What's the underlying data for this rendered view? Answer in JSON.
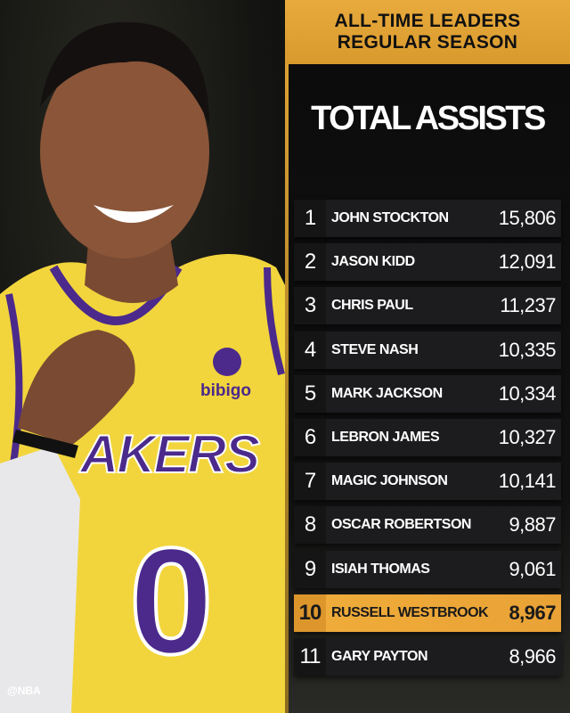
{
  "header": {
    "line1": "ALL-TIME LEADERS",
    "line2": "REGULAR SEASON"
  },
  "title": "TOTAL ASSISTS",
  "leaders": [
    {
      "rank": "1",
      "name": "JOHN STOCKTON",
      "value": "15,806"
    },
    {
      "rank": "2",
      "name": "JASON KIDD",
      "value": "12,091"
    },
    {
      "rank": "3",
      "name": "CHRIS PAUL",
      "value": "11,237"
    },
    {
      "rank": "4",
      "name": "STEVE NASH",
      "value": "10,335"
    },
    {
      "rank": "5",
      "name": "MARK JACKSON",
      "value": "10,334"
    },
    {
      "rank": "6",
      "name": "LEBRON JAMES",
      "value": "10,327"
    },
    {
      "rank": "7",
      "name": "MAGIC JOHNSON",
      "value": "10,141"
    },
    {
      "rank": "8",
      "name": "OSCAR ROBERTSON",
      "value": "9,887"
    },
    {
      "rank": "9",
      "name": "ISIAH THOMAS",
      "value": "9,061"
    },
    {
      "rank": "10",
      "name": "RUSSELL WESTBROOK",
      "value": "8,967",
      "highlighted": true
    },
    {
      "rank": "11",
      "name": "GARY PAYTON",
      "value": "8,966"
    }
  ],
  "photo": {
    "jersey_text": "AKERS",
    "jersey_number": "0",
    "sponsor": "bibigo"
  },
  "watermark": "@NBA",
  "colors": {
    "gold": "#e8aa3c",
    "row": "#1c1c1e",
    "jersey": "#f2d53c",
    "purple": "#4b2a8c"
  }
}
